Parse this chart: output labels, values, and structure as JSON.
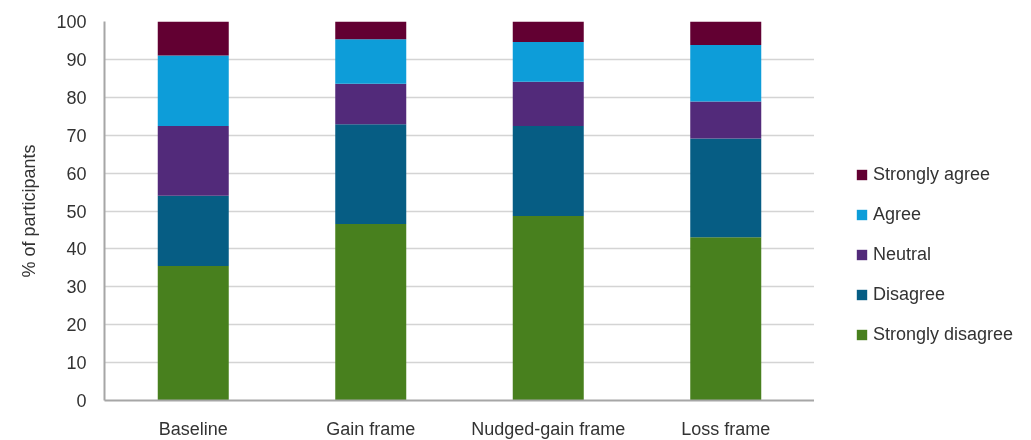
{
  "chart_data": {
    "type": "bar",
    "stacked": true,
    "ylabel": "% of participants",
    "categories": [
      "Baseline",
      "Gain frame",
      "Nudged-gain frame",
      "Loss frame"
    ],
    "series": [
      {
        "name": "Strongly disagree",
        "color": "#48801e",
        "values": [
          35.5,
          46.6,
          48.7,
          43.1
        ]
      },
      {
        "name": "Disagree",
        "color": "#065d84",
        "values": [
          18.5,
          26.3,
          23.7,
          26.0
        ]
      },
      {
        "name": "Neutral",
        "color": "#522a7a",
        "values": [
          18.4,
          10.7,
          11.7,
          9.8
        ]
      },
      {
        "name": "Agree",
        "color": "#0d9dd9",
        "values": [
          18.6,
          11.7,
          10.5,
          14.9
        ]
      },
      {
        "name": "Strongly agree",
        "color": "#620032",
        "values": [
          9.0,
          4.7,
          5.4,
          6.2
        ]
      }
    ],
    "ylim": [
      0,
      100
    ],
    "yticks": [
      0,
      10,
      20,
      30,
      40,
      50,
      60,
      70,
      80,
      90,
      100
    ],
    "grid": "y",
    "legend": "right"
  }
}
